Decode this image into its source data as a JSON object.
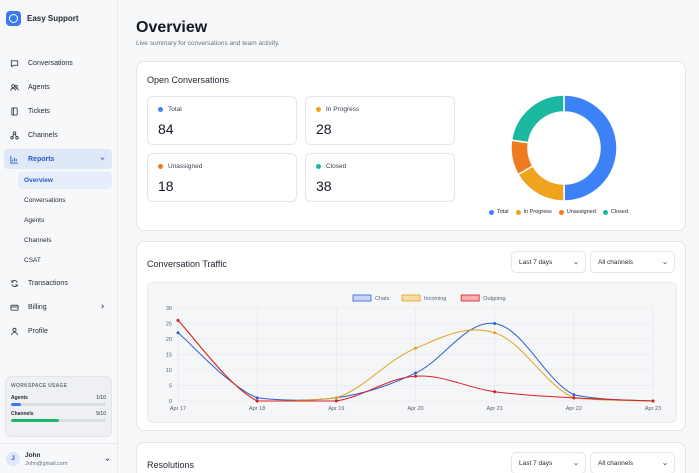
{
  "app": {
    "name": "Easy Support"
  },
  "nav": [
    {
      "id": "conversations",
      "label": "Conversations",
      "icon": "chat-icon"
    },
    {
      "id": "agents",
      "label": "Agents",
      "icon": "users-icon"
    },
    {
      "id": "tickets",
      "label": "Tickets",
      "icon": "ticket-icon"
    },
    {
      "id": "channels",
      "label": "Channels",
      "icon": "channels-icon"
    },
    {
      "id": "reports",
      "label": "Reports",
      "icon": "chart-icon",
      "active": true,
      "expanded": true
    },
    {
      "id": "transactions",
      "label": "Transactions",
      "icon": "refresh-icon"
    },
    {
      "id": "billing",
      "label": "Billing",
      "icon": "wallet-icon",
      "has_chevron": true
    },
    {
      "id": "profile",
      "label": "Profile",
      "icon": "user-icon"
    }
  ],
  "reports_sub": [
    {
      "label": "Overview",
      "active": true
    },
    {
      "label": "Conversations"
    },
    {
      "label": "Agents"
    },
    {
      "label": "Channels"
    },
    {
      "label": "CSAT"
    }
  ],
  "workspace_usage": {
    "title": "WORKSPACE USAGE",
    "items": [
      {
        "label": "Agents",
        "value": "1/10",
        "fraction": 0.1,
        "color": "#3c78f0"
      },
      {
        "label": "Channels",
        "value": "5/10",
        "fraction": 0.5,
        "color": "#1fb56b"
      }
    ]
  },
  "user": {
    "initial": "J",
    "name": "John",
    "email": "John@gmail.com"
  },
  "header": {
    "title": "Overview",
    "subtitle": "Live summary for conversations and team activity."
  },
  "open_conversations": {
    "title": "Open Conversations",
    "stats": [
      {
        "label": "Total",
        "value": "84",
        "color": "#3c82f6"
      },
      {
        "label": "In Progress",
        "value": "28",
        "color": "#f0a31d"
      },
      {
        "label": "Unassigned",
        "value": "18",
        "color": "#f07a20"
      },
      {
        "label": "Closed",
        "value": "38",
        "color": "#1ab8a0"
      }
    ]
  },
  "chart_data": [
    {
      "type": "pie",
      "categories": [
        "Total",
        "In Progress",
        "Unassigned",
        "Closed"
      ],
      "values": [
        84,
        28,
        18,
        38
      ],
      "colors": [
        "#3c82f6",
        "#f0a31d",
        "#f07a20",
        "#1ab8a0"
      ],
      "donut": true,
      "legend": "bottom"
    },
    {
      "type": "line",
      "title": "Conversation Traffic",
      "x": [
        "Apr 17",
        "Apr 18",
        "Apr 19",
        "Apr 20",
        "Apr 21",
        "Apr 22",
        "Apr 23"
      ],
      "ylim": [
        0,
        30
      ],
      "yticks": [
        0,
        5,
        10,
        15,
        20,
        25,
        30
      ],
      "grid": true,
      "legend": "top",
      "series": [
        {
          "name": "Chats",
          "values": [
            22,
            1,
            1,
            9,
            25,
            2,
            0
          ],
          "color": "#2d5fd0",
          "fill": "#c7d6f5"
        },
        {
          "name": "Incoming",
          "values": [
            26,
            0,
            1,
            17,
            22,
            1,
            0
          ],
          "color": "#e2a21a",
          "fill": "#f7dda4"
        },
        {
          "name": "Outgoing",
          "values": [
            26,
            0,
            0,
            8,
            3,
            1,
            0
          ],
          "color": "#d92020",
          "fill": "#f4b0b0"
        }
      ]
    }
  ],
  "traffic": {
    "title": "Conversation Traffic",
    "range_select": "Last 7 days",
    "channel_select": "All channels"
  },
  "resolutions": {
    "title": "Resolutions",
    "range_select": "Last 7 days",
    "channel_select": "All channels"
  }
}
